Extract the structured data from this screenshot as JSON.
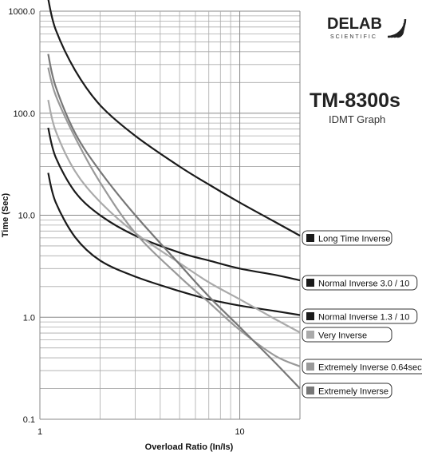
{
  "brand": {
    "name": "DELAB",
    "subname": "SCIENTIFIC",
    "model": "TM-8300s",
    "subtitle": "IDMT Graph"
  },
  "chart_data": {
    "type": "line",
    "xlabel": "Overload Ratio  (In/Is)",
    "ylabel": "Time (Sec)",
    "xscale": "log",
    "yscale": "log",
    "xlim": [
      1,
      20
    ],
    "ylim": [
      0.1,
      1000
    ],
    "x_ticks": [
      "1",
      "10"
    ],
    "y_ticks": [
      "0.1",
      "1.0",
      "10.0",
      "100.0",
      "1000.0"
    ],
    "grid": true,
    "legend": "right, at end of each curve",
    "series": [
      {
        "name": "Long Time Inverse",
        "color": "#1a1a1a",
        "x": [
          1.1,
          1.2,
          1.5,
          2,
          3,
          5,
          7,
          10,
          15,
          20
        ],
        "y": [
          1320,
          660,
          264,
          120,
          60,
          30,
          20,
          13.3,
          8.6,
          6.3
        ]
      },
      {
        "name": "Normal Inverse 3.0 / 10",
        "color": "#1a1a1a",
        "x": [
          1.1,
          1.2,
          1.5,
          2,
          3,
          5,
          7,
          10,
          15,
          20
        ],
        "y": [
          72,
          37,
          16.9,
          10,
          6.3,
          4.3,
          3.6,
          3.0,
          2.6,
          2.3
        ]
      },
      {
        "name": "Normal Inverse 1.3 / 10",
        "color": "#1a1a1a",
        "x": [
          1.1,
          1.2,
          1.5,
          2,
          3,
          5,
          7,
          10,
          15,
          20
        ],
        "y": [
          26,
          13.4,
          6.1,
          3.6,
          2.5,
          1.8,
          1.5,
          1.3,
          1.15,
          1.05
        ]
      },
      {
        "name": "Very Inverse",
        "color": "#aaaaaa",
        "x": [
          1.1,
          1.2,
          1.5,
          2,
          3,
          5,
          7,
          10,
          15,
          20
        ],
        "y": [
          135,
          67,
          27,
          13.5,
          6.7,
          3.4,
          2.2,
          1.5,
          0.96,
          0.71
        ]
      },
      {
        "name": "Extremely Inverse 0.64sec",
        "color": "#999999",
        "x": [
          1.1,
          1.2,
          1.5,
          2,
          3,
          5,
          7,
          10,
          15,
          20
        ],
        "y": [
          280,
          150,
          58,
          21,
          6.7,
          2.5,
          1.4,
          0.75,
          0.42,
          0.33
        ]
      },
      {
        "name": "Extremely Inverse",
        "color": "#777777",
        "x": [
          1.1,
          1.2,
          1.5,
          2,
          3,
          5,
          7,
          10,
          15,
          20
        ],
        "y": [
          380,
          182,
          64,
          27,
          10,
          3.3,
          1.6,
          0.8,
          0.36,
          0.2
        ]
      }
    ]
  }
}
